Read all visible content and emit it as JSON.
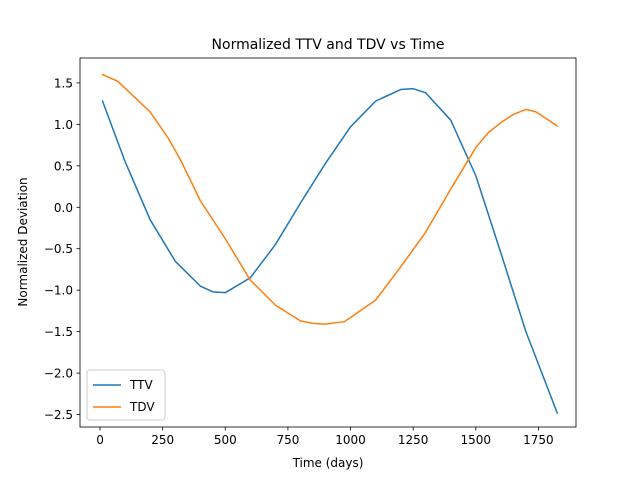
{
  "chart_data": {
    "type": "line",
    "title": "Normalized TTV and TDV vs Time",
    "xlabel": "Time (days)",
    "ylabel": "Normalized Deviation",
    "xlim": [
      -80,
      1900
    ],
    "ylim": [
      -2.65,
      1.8
    ],
    "xticks": [
      0,
      250,
      500,
      750,
      1000,
      1250,
      1500,
      1750
    ],
    "xtick_labels": [
      "0",
      "250",
      "500",
      "750",
      "1000",
      "1250",
      "1500",
      "1750"
    ],
    "yticks": [
      1.5,
      1.0,
      0.5,
      0.0,
      -0.5,
      -1.0,
      -1.5,
      -2.0,
      -2.5
    ],
    "ytick_labels": [
      "1.5",
      "1.0",
      "0.5",
      "0.0",
      "−0.5",
      "−1.0",
      "−1.5",
      "−2.0",
      "−2.5"
    ],
    "grid": false,
    "legend_position": "lower-left",
    "series": [
      {
        "name": "TTV",
        "color": "#1f77b4",
        "x": [
          10,
          100,
          200,
          300,
          400,
          450,
          500,
          600,
          700,
          800,
          900,
          1000,
          1100,
          1200,
          1250,
          1300,
          1400,
          1500,
          1600,
          1700,
          1825
        ],
        "y": [
          1.28,
          0.55,
          -0.15,
          -0.65,
          -0.95,
          -1.02,
          -1.03,
          -0.85,
          -0.45,
          0.05,
          0.53,
          0.97,
          1.28,
          1.42,
          1.43,
          1.38,
          1.05,
          0.38,
          -0.55,
          -1.5,
          -2.48
        ]
      },
      {
        "name": "TDV",
        "color": "#ff7f0e",
        "x": [
          10,
          70,
          130,
          200,
          275,
          325,
          400,
          500,
          600,
          700,
          800,
          850,
          900,
          975,
          1000,
          1100,
          1200,
          1300,
          1400,
          1500,
          1550,
          1600,
          1650,
          1700,
          1740,
          1825
        ],
        "y": [
          1.6,
          1.52,
          1.35,
          1.15,
          0.82,
          0.55,
          0.08,
          -0.38,
          -0.88,
          -1.18,
          -1.37,
          -1.4,
          -1.41,
          -1.38,
          -1.33,
          -1.12,
          -0.72,
          -0.3,
          0.22,
          0.72,
          0.9,
          1.02,
          1.12,
          1.18,
          1.15,
          0.98
        ]
      }
    ]
  }
}
